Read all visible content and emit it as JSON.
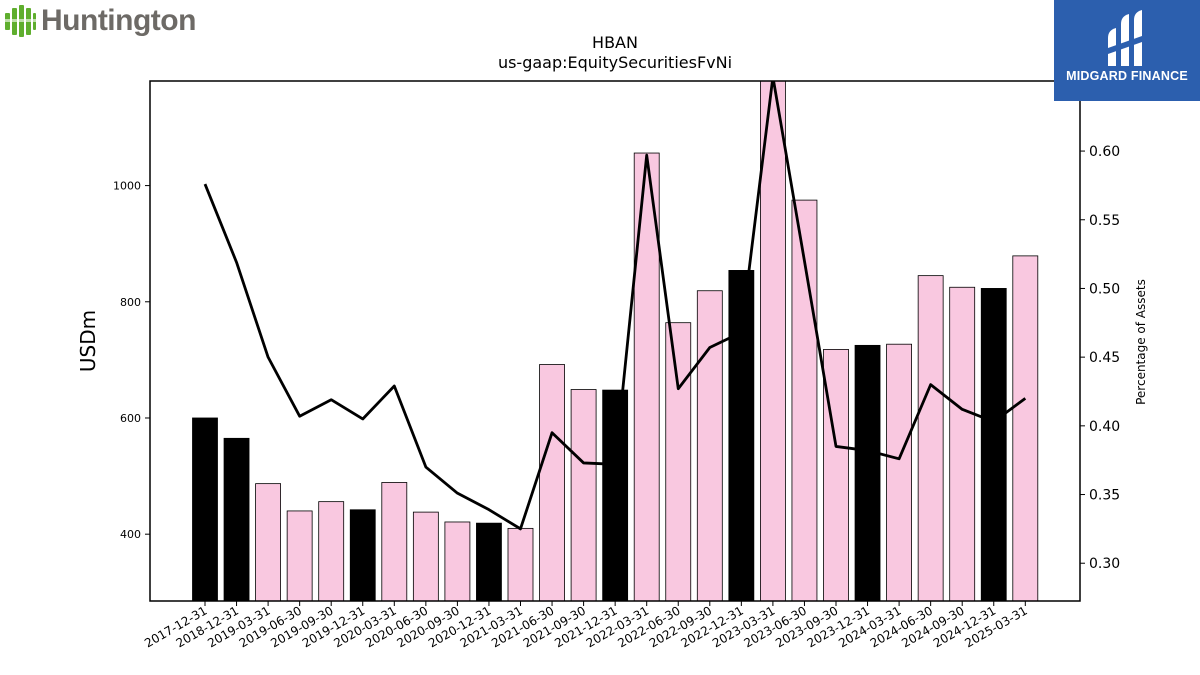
{
  "logos": {
    "left_brand": "Huntington",
    "right_brand": "MIDGARD FINANCE",
    "left_brand_color": "#6d6a66",
    "left_icon_color": "#5fae2e",
    "right_bg_color": "#2c5fae"
  },
  "chart_data": {
    "type": "bar",
    "title": "HBAN",
    "subtitle": "us-gaap:EquitySecuritiesFvNi",
    "ylabel": "USDm",
    "y2label": "Percentage of Assets",
    "ylim": [
      285,
      1180
    ],
    "y2lim": [
      0.2725,
      0.651
    ],
    "yticks": [
      400,
      600,
      800,
      1000
    ],
    "y2ticks": [
      0.3,
      0.35,
      0.4,
      0.45,
      0.5,
      0.55,
      0.6
    ],
    "categories": [
      "2017-12-31",
      "2018-12-31",
      "2019-03-31",
      "2019-06-30",
      "2019-09-30",
      "2019-12-31",
      "2020-03-31",
      "2020-06-30",
      "2020-09-30",
      "2020-12-31",
      "2021-03-31",
      "2021-06-30",
      "2021-09-30",
      "2021-12-31",
      "2022-03-31",
      "2022-06-30",
      "2022-09-30",
      "2022-12-31",
      "2023-03-31",
      "2023-06-30",
      "2023-09-30",
      "2023-12-31",
      "2024-03-31",
      "2024-06-30",
      "2024-09-30",
      "2024-12-31",
      "2025-03-31"
    ],
    "series": [
      {
        "type": "bar",
        "values": [
          600,
          565,
          487,
          440,
          456,
          442,
          489,
          438,
          421,
          419,
          410,
          692,
          649,
          648,
          1056,
          764,
          819,
          854,
          1184,
          975,
          718,
          725,
          727,
          845,
          825,
          823,
          879
        ],
        "annual_flags": [
          true,
          true,
          false,
          false,
          false,
          true,
          false,
          false,
          false,
          true,
          false,
          false,
          false,
          true,
          false,
          false,
          false,
          true,
          false,
          false,
          false,
          true,
          false,
          false,
          false,
          true,
          false
        ],
        "annual_color": "#000000",
        "quarter_color": "#f9c8e0"
      },
      {
        "type": "line",
        "axis": "right",
        "color": "#000000",
        "values": [
          0.576,
          0.519,
          0.45,
          0.407,
          0.419,
          0.405,
          0.429,
          0.37,
          0.351,
          0.339,
          0.325,
          0.395,
          0.373,
          0.372,
          0.597,
          0.427,
          0.457,
          0.468,
          0.654,
          0.52,
          0.385,
          0.382,
          0.376,
          0.43,
          0.412,
          0.403,
          0.42
        ]
      }
    ],
    "grid": false,
    "legend": "none"
  }
}
